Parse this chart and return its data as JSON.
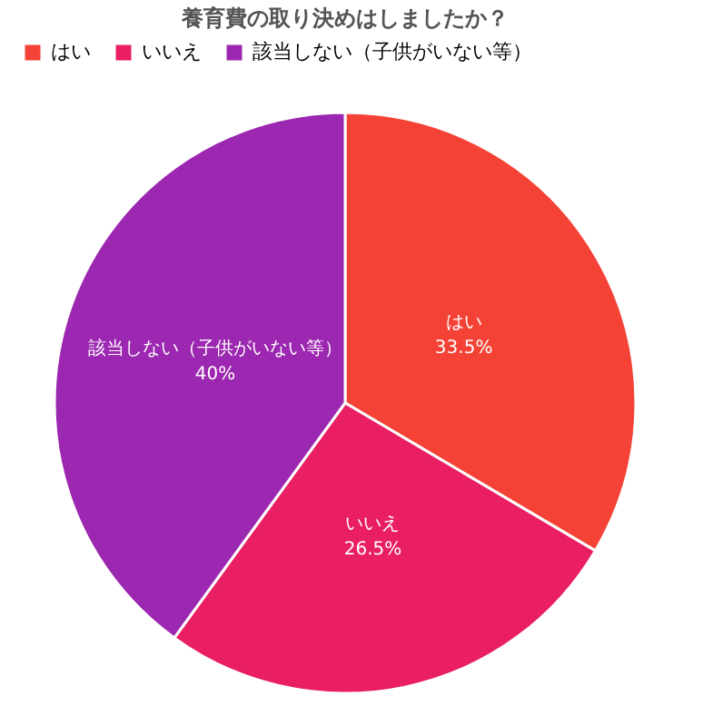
{
  "chart_data": {
    "type": "pie",
    "title": "養育費の取り決めはしましたか？",
    "categories": [
      "はい",
      "いいえ",
      "該当しない（子供がいない等）"
    ],
    "values": [
      33.5,
      26.5,
      40
    ],
    "colors": [
      "#f44336",
      "#e91e63",
      "#9c27b0"
    ],
    "value_labels": [
      "33.5%",
      "26.5%",
      "40%"
    ],
    "legend": "top"
  }
}
